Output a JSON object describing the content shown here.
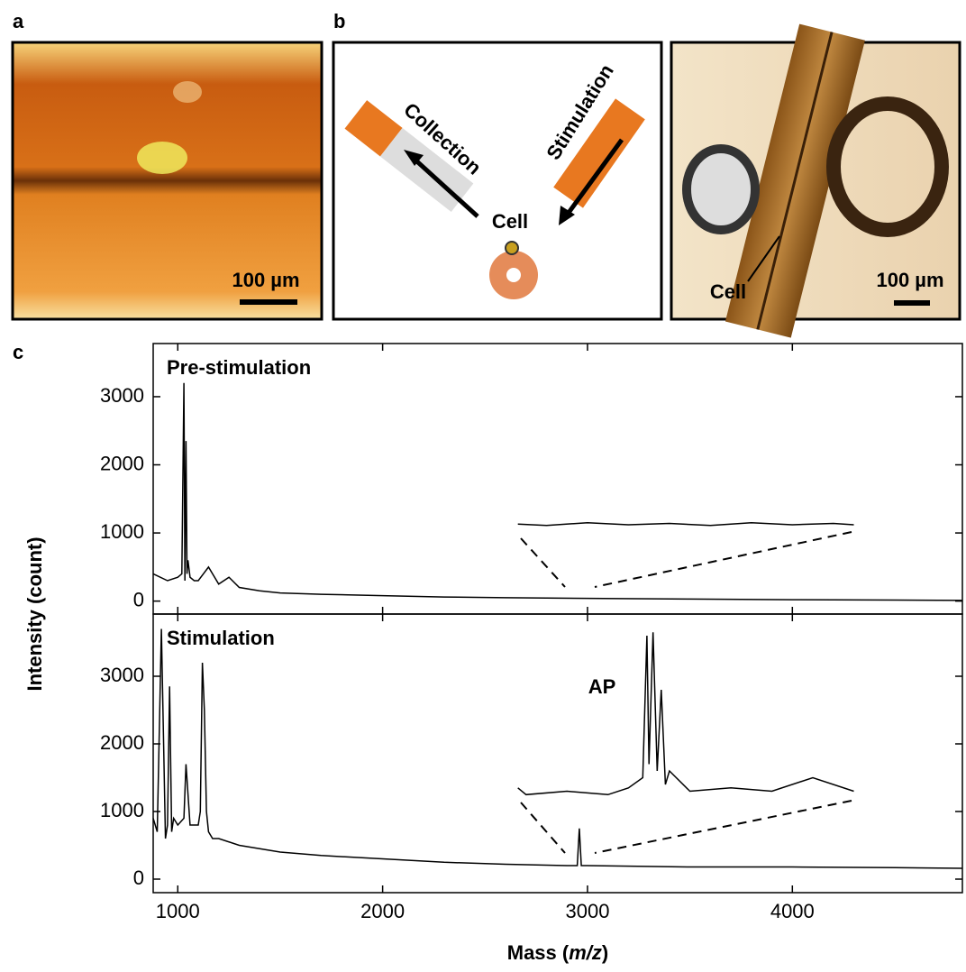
{
  "panels": [
    {
      "letter": "a",
      "scale_bar": "100 µm"
    },
    {
      "letter": "b",
      "left_label": "Collection",
      "right_label": "Stimulation",
      "center_label": "Cell",
      "photo_label": "Cell",
      "scale_bar": "100 µm"
    },
    {
      "letter": "c"
    }
  ],
  "chart_data": [
    {
      "type": "line",
      "title": "Pre-stimulation",
      "y_label": "Intensity (count)",
      "xlim": [
        880,
        4830
      ],
      "ylim": [
        -190,
        3780
      ],
      "xticks": [
        1000,
        2000,
        3000,
        4000
      ],
      "yticks": [
        0,
        1000,
        2000,
        3000
      ],
      "series": [
        {
          "color": "#000000",
          "x": [
            880,
            950,
            1000,
            1020,
            1030,
            1035,
            1040,
            1045,
            1050,
            1060,
            1080,
            1100,
            1150,
            1200,
            1250,
            1300,
            1400,
            1500,
            1700,
            2000,
            2300,
            2600,
            3000,
            3500,
            4000,
            4500,
            4830
          ],
          "values": [
            400,
            300,
            350,
            400,
            3200,
            300,
            2350,
            400,
            600,
            350,
            300,
            300,
            500,
            250,
            350,
            200,
            150,
            120,
            100,
            80,
            60,
            50,
            40,
            30,
            20,
            15,
            10
          ]
        },
        {
          "color": "#000000",
          "x": [
            2660,
            2800,
            3000,
            3200,
            3400,
            3600,
            3800,
            4000,
            4200,
            4300
          ],
          "values": [
            1130,
            1110,
            1150,
            1120,
            1140,
            1110,
            1150,
            1120,
            1140,
            1120
          ]
        }
      ]
    },
    {
      "type": "line",
      "title": "Stimulation",
      "annotation": "AP",
      "x_label": [
        "Mass (",
        "m/z",
        ")"
      ],
      "xlim": [
        880,
        4830
      ],
      "ylim": [
        -200,
        3920
      ],
      "xticks": [
        1000,
        2000,
        3000,
        4000
      ],
      "yticks": [
        0,
        1000,
        2000,
        3000
      ],
      "series": [
        {
          "color": "#000000",
          "x": [
            880,
            900,
            920,
            940,
            950,
            960,
            970,
            980,
            1000,
            1030,
            1040,
            1060,
            1100,
            1110,
            1120,
            1130,
            1140,
            1150,
            1170,
            1200,
            1300,
            1400,
            1500,
            1700,
            2000,
            2300,
            2600,
            2900,
            2950,
            2960,
            2970,
            3000,
            3500,
            4000,
            4500,
            4830
          ],
          "values": [
            900,
            700,
            3700,
            600,
            800,
            2850,
            700,
            900,
            800,
            900,
            1700,
            800,
            800,
            1000,
            3200,
            2500,
            1000,
            700,
            600,
            600,
            500,
            450,
            400,
            350,
            300,
            250,
            220,
            200,
            200,
            750,
            200,
            200,
            180,
            180,
            170,
            160
          ]
        },
        {
          "color": "#000000",
          "x": [
            2660,
            2700,
            2900,
            3100,
            3200,
            3270,
            3290,
            3300,
            3320,
            3340,
            3360,
            3380,
            3400,
            3500,
            3700,
            3900,
            4100,
            4300
          ],
          "values": [
            1350,
            1250,
            1300,
            1250,
            1350,
            1500,
            3600,
            1700,
            3650,
            1600,
            2800,
            1400,
            1600,
            1300,
            1350,
            1300,
            1500,
            1300
          ]
        }
      ]
    }
  ]
}
